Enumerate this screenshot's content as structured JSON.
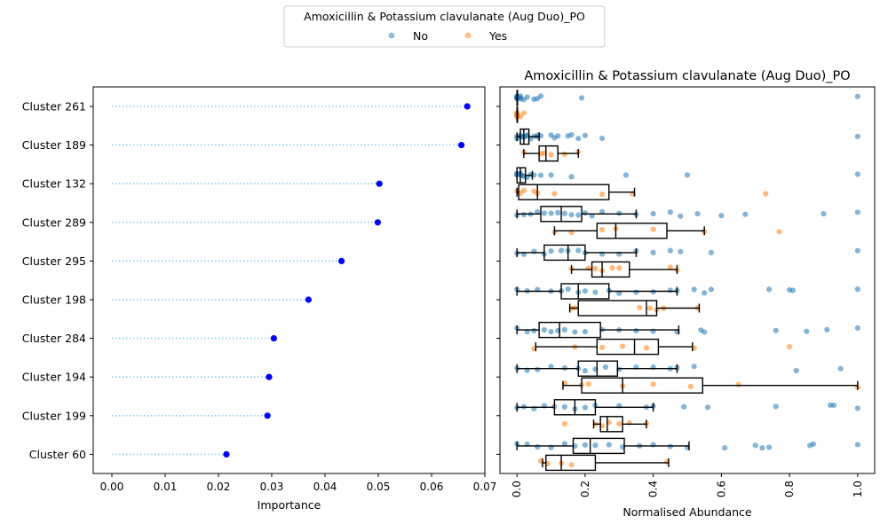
{
  "legend": {
    "title": "Amoxicillin & Potassium clavulanate (Aug Duo)_PO",
    "entries": [
      {
        "label": "No",
        "color": "#1f77b4"
      },
      {
        "label": "Yes",
        "color": "#ff7f0e"
      }
    ]
  },
  "chart_data": [
    {
      "type": "lollipop",
      "orientation": "horizontal",
      "title": "",
      "xlabel": "Importance",
      "ylabel": "",
      "xlim": [
        -0.0035,
        0.07
      ],
      "xticks": [
        "0.00",
        "0.01",
        "0.02",
        "0.03",
        "0.04",
        "0.05",
        "0.06",
        "0.07"
      ],
      "xtick_values": [
        0,
        0.01,
        0.02,
        0.03,
        0.04,
        0.05,
        0.06,
        0.07
      ],
      "grid": false,
      "stem_color": "#87ceeb",
      "marker_color": "#0000ff",
      "categories": [
        "Cluster 261",
        "Cluster 189",
        "Cluster 132",
        "Cluster 289",
        "Cluster 295",
        "Cluster 198",
        "Cluster 284",
        "Cluster 194",
        "Cluster 199",
        "Cluster 60"
      ],
      "values": [
        0.0667,
        0.0656,
        0.0502,
        0.0499,
        0.0431,
        0.0369,
        0.0304,
        0.0295,
        0.0292,
        0.0215
      ]
    },
    {
      "type": "box",
      "orientation": "horizontal",
      "title": "Amoxicillin & Potassium clavulanate (Aug Duo)_PO",
      "xlabel": "Normalised Abundance",
      "ylabel": "",
      "xlim": [
        -0.05,
        1.05
      ],
      "xticks": [
        "0.0",
        "0.2",
        "0.4",
        "0.6",
        "0.8",
        "1.0"
      ],
      "xtick_values": [
        0,
        0.2,
        0.4,
        0.6,
        0.8,
        1.0
      ],
      "grid": false,
      "categories": [
        "Cluster 261",
        "Cluster 189",
        "Cluster 132",
        "Cluster 289",
        "Cluster 295",
        "Cluster 198",
        "Cluster 284",
        "Cluster 194",
        "Cluster 199",
        "Cluster 60"
      ],
      "groups": [
        {
          "cluster": "Cluster 261",
          "No": {
            "box": [
              0.0,
              0.0,
              0.0,
              0.0,
              0.0
            ],
            "points": [
              0.0,
              0.0,
              0.0,
              0.0,
              0.0,
              0.01,
              0.01,
              0.02,
              0.0,
              0.0,
              0.03,
              0.05,
              0.06,
              0.07,
              0.19,
              0.0,
              0.01,
              1.0
            ]
          },
          "Yes": {
            "box": [
              0.0,
              0.0,
              0.0,
              0.0,
              0.0
            ],
            "points": [
              0.0,
              0.0,
              0.0,
              0.0,
              0.01,
              0.0,
              0.02
            ]
          }
        },
        {
          "cluster": "Cluster 189",
          "No": {
            "box": [
              0.0,
              0.01,
              0.02,
              0.035,
              0.065
            ],
            "points": [
              0.0,
              0.0,
              0.01,
              0.01,
              0.02,
              0.02,
              0.03,
              0.03,
              0.04,
              0.05,
              0.06,
              0.06,
              0.07,
              0.1,
              0.11,
              0.12,
              0.15,
              0.16,
              0.18,
              0.2,
              0.25,
              1.0
            ]
          },
          "Yes": {
            "box": [
              0.02,
              0.065,
              0.085,
              0.12,
              0.18
            ],
            "points": [
              0.02,
              0.07,
              0.08,
              0.1,
              0.14,
              0.18
            ]
          }
        },
        {
          "cluster": "Cluster 132",
          "No": {
            "box": [
              0.0,
              0.0,
              0.01,
              0.025,
              0.045
            ],
            "points": [
              0.0,
              0.0,
              0.0,
              0.01,
              0.01,
              0.02,
              0.02,
              0.03,
              0.04,
              0.05,
              0.07,
              0.1,
              0.16,
              0.32,
              0.5,
              1.0
            ]
          },
          "Yes": {
            "box": [
              0.0,
              0.005,
              0.06,
              0.27,
              0.345
            ],
            "points": [
              0.0,
              0.01,
              0.02,
              0.05,
              0.06,
              0.11,
              0.25,
              0.34,
              0.73
            ]
          }
        },
        {
          "cluster": "Cluster 289",
          "No": {
            "box": [
              0.0,
              0.07,
              0.13,
              0.19,
              0.35
            ],
            "points": [
              0.0,
              0.02,
              0.04,
              0.06,
              0.08,
              0.1,
              0.12,
              0.14,
              0.16,
              0.18,
              0.2,
              0.22,
              0.25,
              0.3,
              0.35,
              0.4,
              0.45,
              0.48,
              0.53,
              0.6,
              0.67,
              0.9,
              1.0
            ]
          },
          "Yes": {
            "box": [
              0.11,
              0.235,
              0.29,
              0.44,
              0.55
            ],
            "points": [
              0.11,
              0.16,
              0.25,
              0.29,
              0.4,
              0.55,
              0.77
            ]
          }
        },
        {
          "cluster": "Cluster 295",
          "No": {
            "box": [
              0.0,
              0.08,
              0.15,
              0.2,
              0.35
            ],
            "points": [
              0.0,
              0.02,
              0.05,
              0.08,
              0.1,
              0.13,
              0.15,
              0.18,
              0.2,
              0.25,
              0.3,
              0.35,
              0.4,
              0.45,
              0.48,
              0.57,
              1.0
            ]
          },
          "Yes": {
            "box": [
              0.16,
              0.22,
              0.25,
              0.33,
              0.47
            ],
            "points": [
              0.16,
              0.21,
              0.23,
              0.25,
              0.28,
              0.3,
              0.45,
              0.47
            ]
          }
        },
        {
          "cluster": "Cluster 198",
          "No": {
            "box": [
              0.0,
              0.13,
              0.18,
              0.27,
              0.47
            ],
            "points": [
              0.0,
              0.03,
              0.06,
              0.1,
              0.13,
              0.15,
              0.18,
              0.2,
              0.23,
              0.27,
              0.3,
              0.35,
              0.4,
              0.45,
              0.47,
              0.52,
              0.55,
              0.57,
              0.74,
              0.8,
              0.81,
              1.0
            ]
          },
          "Yes": {
            "box": [
              0.155,
              0.18,
              0.38,
              0.41,
              0.535
            ],
            "points": [
              0.16,
              0.17,
              0.36,
              0.39,
              0.41,
              0.43,
              0.53
            ]
          }
        },
        {
          "cluster": "Cluster 284",
          "No": {
            "box": [
              0.0,
              0.065,
              0.125,
              0.245,
              0.475
            ],
            "points": [
              0.0,
              0.03,
              0.05,
              0.08,
              0.1,
              0.12,
              0.14,
              0.17,
              0.2,
              0.25,
              0.3,
              0.35,
              0.4,
              0.47,
              0.54,
              0.55,
              0.76,
              0.85,
              0.91,
              1.0
            ]
          },
          "Yes": {
            "box": [
              0.055,
              0.235,
              0.345,
              0.415,
              0.515
            ],
            "points": [
              0.05,
              0.17,
              0.25,
              0.31,
              0.38,
              0.52,
              0.8
            ]
          }
        },
        {
          "cluster": "Cluster 194",
          "No": {
            "box": [
              0.0,
              0.18,
              0.235,
              0.295,
              0.47
            ],
            "points": [
              0.0,
              0.03,
              0.06,
              0.1,
              0.14,
              0.18,
              0.2,
              0.23,
              0.26,
              0.3,
              0.35,
              0.4,
              0.45,
              0.47,
              0.52,
              0.82,
              0.95
            ]
          },
          "Yes": {
            "box": [
              0.135,
              0.19,
              0.31,
              0.545,
              1.0
            ],
            "points": [
              0.14,
              0.19,
              0.21,
              0.31,
              0.4,
              0.51,
              0.65,
              1.0
            ]
          }
        },
        {
          "cluster": "Cluster 199",
          "No": {
            "box": [
              0.0,
              0.11,
              0.17,
              0.23,
              0.4
            ],
            "points": [
              0.0,
              0.02,
              0.05,
              0.08,
              0.11,
              0.14,
              0.17,
              0.2,
              0.23,
              0.3,
              0.38,
              0.4,
              0.49,
              0.56,
              0.76,
              0.92,
              0.93,
              1.0
            ]
          },
          "Yes": {
            "box": [
              0.225,
              0.245,
              0.265,
              0.31,
              0.38
            ],
            "points": [
              0.14,
              0.23,
              0.25,
              0.27,
              0.3,
              0.33,
              0.38
            ]
          }
        },
        {
          "cluster": "Cluster 60",
          "No": {
            "box": [
              0.0,
              0.165,
              0.215,
              0.315,
              0.505
            ],
            "points": [
              0.0,
              0.03,
              0.06,
              0.1,
              0.14,
              0.17,
              0.2,
              0.23,
              0.27,
              0.31,
              0.36,
              0.4,
              0.45,
              0.5,
              0.61,
              0.7,
              0.72,
              0.74,
              0.86,
              0.87,
              1.0
            ]
          },
          "Yes": {
            "box": [
              0.075,
              0.085,
              0.13,
              0.23,
              0.445
            ],
            "points": [
              0.07,
              0.09,
              0.13,
              0.16,
              0.44
            ]
          }
        }
      ]
    }
  ]
}
